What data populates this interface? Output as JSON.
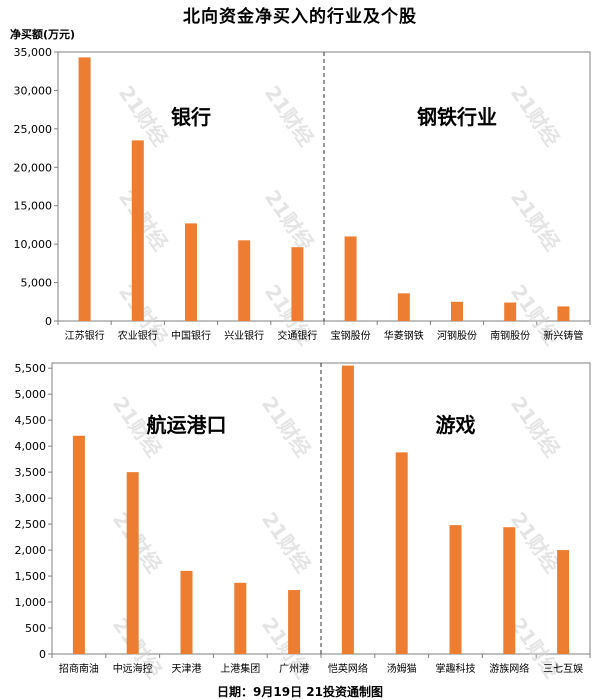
{
  "title": "北向资金净买入的行业及个股",
  "unit_label": "净买额(万元)",
  "footer": "日期：9月19日 21投资通制图",
  "watermark": "21财经",
  "bar_color": "#ED7D31",
  "chart_data": [
    {
      "type": "bar",
      "ylabel": "净买额(万元)",
      "ylim": [
        0,
        35000
      ],
      "yticks": [
        0,
        5000,
        10000,
        15000,
        20000,
        25000,
        30000,
        35000
      ],
      "ytick_labels": [
        "0",
        "5,000",
        "10,000",
        "15,000",
        "20,000",
        "25,000",
        "30,000",
        "35,000"
      ],
      "groups": [
        "银行",
        "钢铁行业"
      ],
      "categories": [
        "江苏银行",
        "农业银行",
        "中国银行",
        "兴业银行",
        "交通银行",
        "宝钢股份",
        "华菱钢铁",
        "河钢股份",
        "南钢股份",
        "新兴铸管"
      ],
      "values": [
        34300,
        23500,
        12700,
        10500,
        9600,
        11000,
        3600,
        2500,
        2400,
        1900
      ]
    },
    {
      "type": "bar",
      "ylabel": "净买额(万元)",
      "ylim": [
        0,
        5600
      ],
      "yticks": [
        0,
        500,
        1000,
        1500,
        2000,
        2500,
        3000,
        3500,
        4000,
        4500,
        5000,
        5500
      ],
      "ytick_labels": [
        "0",
        "500",
        "1,000",
        "1,500",
        "2,000",
        "2,500",
        "3,000",
        "3,500",
        "4,000",
        "4,500",
        "5,000",
        "5,500"
      ],
      "groups": [
        "航运港口",
        "游戏"
      ],
      "categories": [
        "招商南油",
        "中远海控",
        "天津港",
        "上港集团",
        "广州港",
        "恺英网络",
        "汤姆猫",
        "掌趣科技",
        "游族网络",
        "三七互娱"
      ],
      "values": [
        4200,
        3500,
        1600,
        1370,
        1230,
        5550,
        3880,
        2480,
        2440,
        2000
      ]
    }
  ]
}
